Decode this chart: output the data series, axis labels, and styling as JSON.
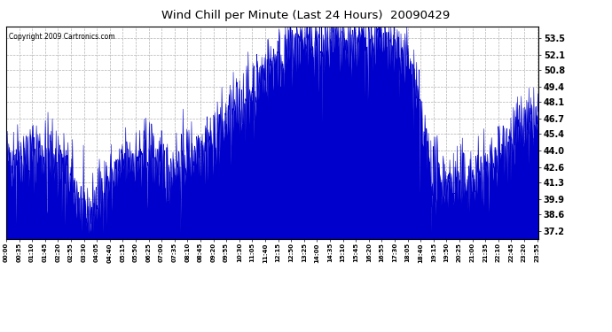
{
  "title": "Wind Chill per Minute (Last 24 Hours)  20090429",
  "copyright": "Copyright 2009 Cartronics.com",
  "line_color": "#0000cc",
  "bg_color": "#ffffff",
  "plot_bg_color": "#ffffff",
  "grid_color": "#aaaaaa",
  "yticks": [
    37.2,
    38.6,
    39.9,
    41.3,
    42.6,
    44.0,
    45.4,
    46.7,
    48.1,
    49.4,
    50.8,
    52.1,
    53.5
  ],
  "ylim": [
    36.5,
    54.5
  ],
  "figsize": [
    6.9,
    3.75
  ],
  "dpi": 100,
  "xtick_labels": [
    "00:00",
    "00:35",
    "01:10",
    "01:45",
    "02:20",
    "02:55",
    "03:30",
    "04:05",
    "04:40",
    "05:15",
    "05:50",
    "06:25",
    "07:00",
    "07:35",
    "08:10",
    "08:45",
    "09:20",
    "09:55",
    "10:30",
    "11:05",
    "11:40",
    "12:15",
    "12:50",
    "13:25",
    "14:00",
    "14:35",
    "15:10",
    "15:45",
    "16:20",
    "16:55",
    "17:30",
    "18:05",
    "18:40",
    "19:15",
    "19:50",
    "20:25",
    "21:00",
    "21:35",
    "22:10",
    "22:45",
    "23:20",
    "23:55"
  ],
  "seed": 42,
  "noise_std": 1.4,
  "spike_prob": 0.06,
  "spike_std": 3.0
}
